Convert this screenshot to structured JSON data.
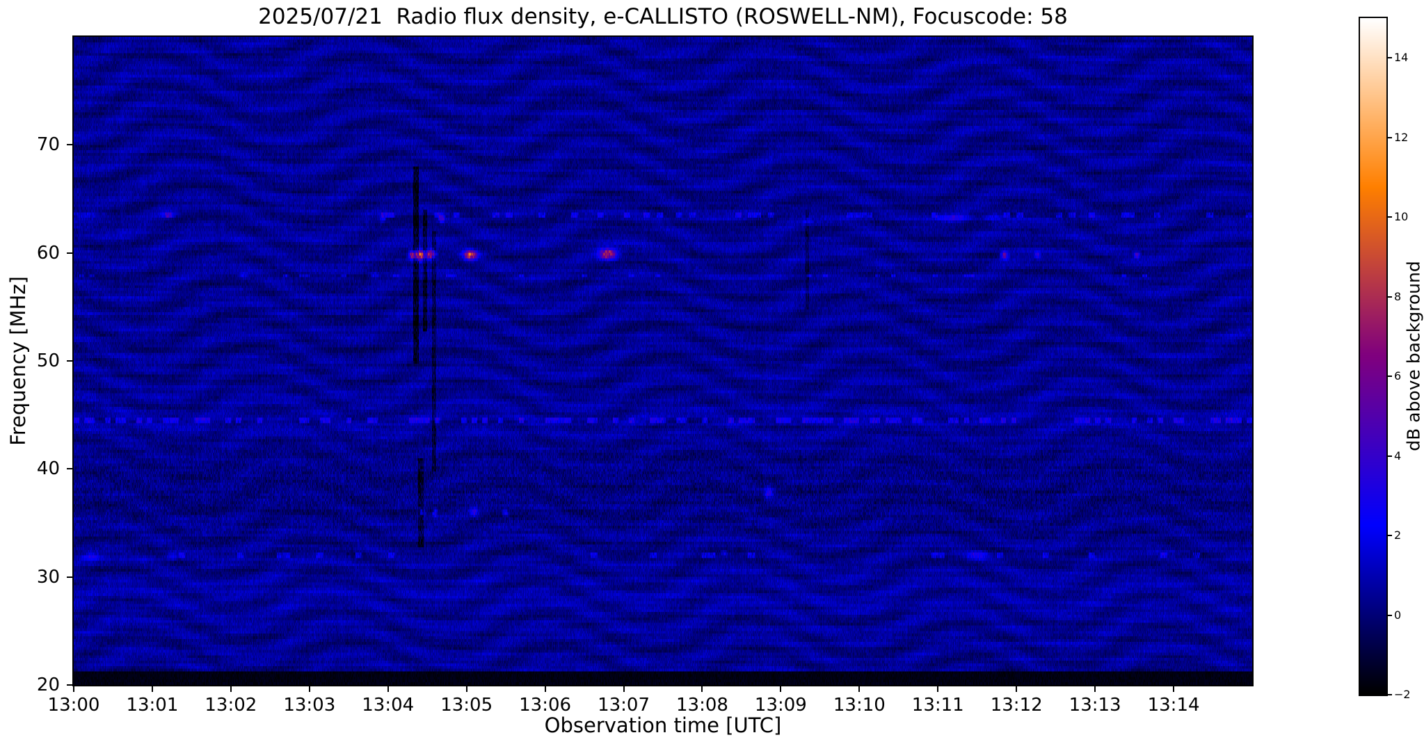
{
  "chart_data": {
    "type": "heatmap",
    "title": "2025/07/21  Radio flux density, e-CALLISTO (ROSWELL-NM), Focuscode: 58",
    "date": "2025/07/21",
    "instrument": "e-CALLISTO",
    "station": "ROSWELL-NM",
    "focuscode": 58,
    "xlabel": "Observation time [UTC]",
    "ylabel": "Frequency [MHz]",
    "x_ticks": [
      "13:00",
      "13:01",
      "13:02",
      "13:03",
      "13:04",
      "13:05",
      "13:06",
      "13:07",
      "13:08",
      "13:09",
      "13:10",
      "13:11",
      "13:12",
      "13:13",
      "13:14"
    ],
    "x_range_seconds": [
      0,
      900
    ],
    "x_start_utc": "13:00",
    "y_ticks": [
      20,
      30,
      40,
      50,
      60,
      70
    ],
    "y_range_mhz": [
      20,
      80
    ],
    "grid": false,
    "colorbar": {
      "label": "dB above background",
      "ticks": [
        -2,
        0,
        2,
        4,
        6,
        8,
        10,
        12,
        14
      ],
      "vmin": -2,
      "vmax": 15,
      "colormap": "gnuplot2",
      "position": "right"
    },
    "background_db": 0.4,
    "ripple_note": "quasi-horizontal ionospheric interference fringes undulating in time across the whole band",
    "bands": [
      {
        "f": 44.6,
        "sigma": 1.2,
        "db": 0.3
      },
      {
        "f": 28.0,
        "sigma": 2.0,
        "db": 0.2
      },
      {
        "f": 38.0,
        "sigma": 3.0,
        "db": -0.25
      }
    ],
    "rfi_lines": [
      {
        "freq_mhz": 44.5,
        "width_mhz": 0.6,
        "dash_seconds": 4,
        "duty": 0.5,
        "db": 2.4
      },
      {
        "freq_mhz": 63.4,
        "width_mhz": 0.5,
        "dash_seconds": 5,
        "duty": 0.18,
        "db": 2.0
      },
      {
        "freq_mhz": 32.0,
        "width_mhz": 0.5,
        "dash_seconds": 5,
        "duty": 0.12,
        "db": 1.8
      },
      {
        "freq_mhz": 57.9,
        "width_mhz": 0.4,
        "dash_seconds": 4,
        "duty": 0.1,
        "db": 1.8
      }
    ],
    "bursts": [
      {
        "t": 258,
        "f": 59.8,
        "dt": 3,
        "df": 0.5,
        "peak": 5.0
      },
      {
        "t": 264,
        "f": 59.8,
        "dt": 7,
        "df": 0.7,
        "peak": 9.0
      },
      {
        "t": 273,
        "f": 59.9,
        "dt": 5,
        "df": 0.6,
        "peak": 8.0
      },
      {
        "t": 281,
        "f": 63.2,
        "dt": 3,
        "df": 0.5,
        "peak": 4.5
      },
      {
        "t": 303,
        "f": 59.8,
        "dt": 7,
        "df": 0.6,
        "peak": 8.5
      },
      {
        "t": 408,
        "f": 59.9,
        "dt": 9,
        "df": 0.7,
        "peak": 8.0
      },
      {
        "t": 711,
        "f": 59.8,
        "dt": 4,
        "df": 0.5,
        "peak": 5.5
      },
      {
        "t": 736,
        "f": 59.8,
        "dt": 3,
        "df": 0.4,
        "peak": 3.5
      },
      {
        "t": 812,
        "f": 59.8,
        "dt": 3,
        "df": 0.4,
        "peak": 4.5
      },
      {
        "t": 266,
        "f": 36.0,
        "dt": 4,
        "df": 0.5,
        "peak": 3.2
      },
      {
        "t": 276,
        "f": 35.9,
        "dt": 3,
        "df": 0.5,
        "peak": 3.0
      },
      {
        "t": 306,
        "f": 36.0,
        "dt": 4,
        "df": 0.5,
        "peak": 3.4
      },
      {
        "t": 330,
        "f": 35.9,
        "dt": 3,
        "df": 0.4,
        "peak": 2.8
      },
      {
        "t": 531,
        "f": 37.8,
        "dt": 4,
        "df": 0.6,
        "peak": 3.6
      },
      {
        "t": 14,
        "f": 31.9,
        "dt": 10,
        "df": 0.5,
        "peak": 2.4
      },
      {
        "t": 75,
        "f": 31.9,
        "dt": 6,
        "df": 0.4,
        "peak": 2.2
      },
      {
        "t": 497,
        "f": 32.2,
        "dt": 3,
        "df": 0.4,
        "peak": 2.0
      },
      {
        "t": 690,
        "f": 32.0,
        "dt": 12,
        "df": 0.5,
        "peak": 2.4
      },
      {
        "t": 10,
        "f": 63.5,
        "dt": 18,
        "df": 0.5,
        "peak": 2.2
      },
      {
        "t": 72,
        "f": 63.5,
        "dt": 8,
        "df": 0.4,
        "peak": 2.2
      },
      {
        "t": 236,
        "f": 63.1,
        "dt": 3,
        "df": 0.4,
        "peak": 2.6
      },
      {
        "t": 560,
        "f": 62.9,
        "dt": 4,
        "df": 0.4,
        "peak": 2.0
      },
      {
        "t": 672,
        "f": 63.3,
        "dt": 16,
        "df": 0.5,
        "peak": 2.4
      },
      {
        "t": 702,
        "f": 63.4,
        "dt": 10,
        "df": 0.5,
        "peak": 2.3
      },
      {
        "t": 130,
        "f": 57.9,
        "dt": 4,
        "df": 0.4,
        "peak": 2.0
      },
      {
        "t": 230,
        "f": 57.9,
        "dt": 4,
        "df": 0.4,
        "peak": 2.2
      }
    ],
    "dropouts": [
      {
        "t": 261,
        "dt": 3,
        "fmin": 50,
        "fmax": 68,
        "depth": -2.5
      },
      {
        "t": 268,
        "dt": 2,
        "fmin": 53,
        "fmax": 64,
        "depth": -2.0
      },
      {
        "t": 275,
        "dt": 2,
        "fmin": 40,
        "fmax": 62,
        "depth": -1.5
      },
      {
        "t": 265,
        "dt": 3,
        "fmin": 33,
        "fmax": 41,
        "depth": -1.8
      },
      {
        "t": 560,
        "dt": 2,
        "fmin": 55,
        "fmax": 64,
        "depth": -1.2
      }
    ]
  }
}
